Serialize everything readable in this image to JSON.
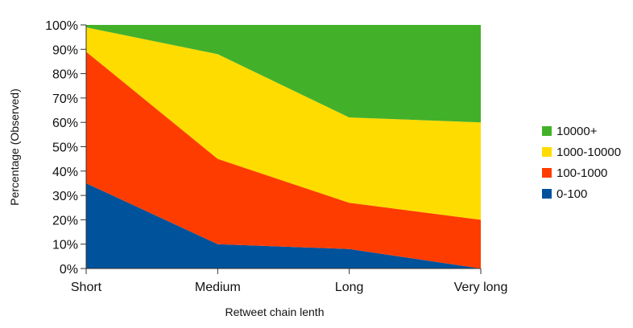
{
  "chart_data": {
    "type": "area",
    "stacked": true,
    "percent": true,
    "categories": [
      "Short",
      "Medium",
      "Long",
      "Very long"
    ],
    "series": [
      {
        "name": "0-100",
        "color": "#00529b",
        "values": [
          35,
          10,
          8,
          0
        ]
      },
      {
        "name": "100-1000",
        "color": "#ff3c00",
        "values": [
          54,
          35,
          19,
          20
        ]
      },
      {
        "name": "1000-10000",
        "color": "#ffdc00",
        "values": [
          10,
          43,
          35,
          40
        ]
      },
      {
        "name": "10000+",
        "color": "#43b02a",
        "values": [
          1,
          12,
          38,
          40
        ]
      }
    ],
    "legend_order": [
      "10000+",
      "1000-10000",
      "100-1000",
      "0-100"
    ],
    "yticks": [
      "0%",
      "10%",
      "20%",
      "30%",
      "40%",
      "50%",
      "60%",
      "70%",
      "80%",
      "90%",
      "100%"
    ],
    "ylim": [
      0,
      100
    ],
    "xlabel": "Retweet chain lenth",
    "ylabel": "Percentage (Observed)",
    "legend_position": "right",
    "grid": false
  }
}
